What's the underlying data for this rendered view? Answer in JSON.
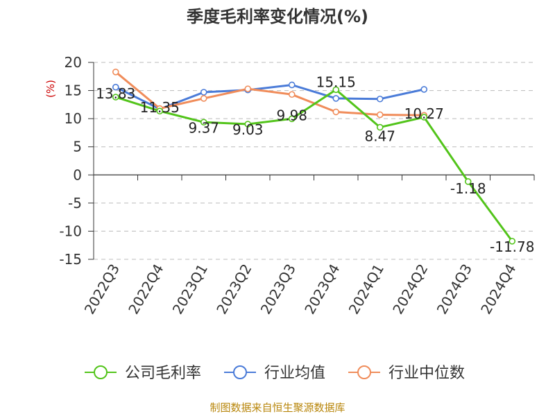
{
  "chart_data": {
    "type": "line",
    "title": "季度毛利率变化情况(%)",
    "ylabel": "(%)",
    "ylim": [
      -15,
      20
    ],
    "yticks": [
      20,
      15,
      10,
      5,
      0,
      -5,
      -10,
      -15
    ],
    "grid": true,
    "legend_position": "bottom",
    "categories": [
      "2022Q3",
      "2022Q4",
      "2023Q1",
      "2023Q2",
      "2023Q3",
      "2023Q4",
      "2024Q1",
      "2024Q2",
      "2024Q3",
      "2024Q4"
    ],
    "series": [
      {
        "name": "公司毛利率",
        "color": "#52c41a",
        "values": [
          13.83,
          11.35,
          9.37,
          9.03,
          9.98,
          15.15,
          8.47,
          10.27,
          -1.18,
          -11.78
        ],
        "labels": [
          "13.83",
          "11.35",
          "9.37",
          "9.03",
          "9.98",
          "15.15",
          "8.47",
          "10.27",
          "-1.18",
          "-11.78"
        ]
      },
      {
        "name": "行业均值",
        "color": "#4a7bd8",
        "values": [
          15.6,
          11.7,
          14.7,
          15.1,
          16.0,
          13.6,
          13.5,
          15.2,
          null,
          null
        ]
      },
      {
        "name": "行业中位数",
        "color": "#f08c5a",
        "values": [
          18.3,
          11.8,
          13.6,
          15.3,
          14.3,
          11.2,
          10.7,
          10.6,
          null,
          null
        ]
      }
    ]
  },
  "source_text": "制图数据来自恒生聚源数据库"
}
